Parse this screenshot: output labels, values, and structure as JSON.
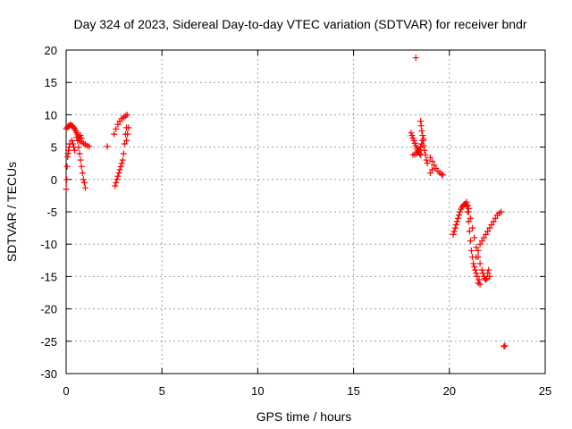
{
  "chart_data": {
    "type": "scatter",
    "title": "Day 324 of 2023, Sidereal Day-to-day VTEC variation (SDTVAR) for receiver bndr",
    "xlabel": "GPS time / hours",
    "ylabel": "SDTVAR / TECUs",
    "xlim": [
      0,
      25
    ],
    "ylim": [
      -30,
      20
    ],
    "x_ticks": [
      0,
      5,
      10,
      15,
      20,
      25
    ],
    "y_ticks": [
      -30,
      -25,
      -20,
      -15,
      -10,
      -5,
      0,
      5,
      10,
      15,
      20
    ],
    "grid": true,
    "legend": "none",
    "marker": "+",
    "color": "#ff0000",
    "series": [
      {
        "points": [
          [
            0.0,
            -1.5
          ],
          [
            0.03,
            0.0
          ],
          [
            0.05,
            2.0
          ],
          [
            0.08,
            3.5
          ],
          [
            0.1,
            4.0
          ],
          [
            0.13,
            4.5
          ],
          [
            0.16,
            5.0
          ],
          [
            0.19,
            5.5
          ],
          [
            0.0,
            7.8
          ],
          [
            0.05,
            8.0
          ],
          [
            0.1,
            8.2
          ],
          [
            0.15,
            8.3
          ],
          [
            0.2,
            8.4
          ],
          [
            0.25,
            8.4
          ],
          [
            0.3,
            8.3
          ],
          [
            0.35,
            8.2
          ],
          [
            0.4,
            8.0
          ],
          [
            0.45,
            7.8
          ],
          [
            0.5,
            7.5
          ],
          [
            0.55,
            7.2
          ],
          [
            0.6,
            6.9
          ],
          [
            0.65,
            6.6
          ],
          [
            0.7,
            6.3
          ],
          [
            0.3,
            6.0
          ],
          [
            0.35,
            5.5
          ],
          [
            0.4,
            5.0
          ],
          [
            0.45,
            4.5
          ],
          [
            0.55,
            6.5
          ],
          [
            0.6,
            6.0
          ],
          [
            0.65,
            5.0
          ],
          [
            0.7,
            4.0
          ],
          [
            0.75,
            3.0
          ],
          [
            0.8,
            2.0
          ],
          [
            0.85,
            1.0
          ],
          [
            0.9,
            0.0
          ],
          [
            0.95,
            -0.5
          ],
          [
            1.0,
            -1.3
          ],
          [
            0.7,
            6.0
          ],
          [
            0.8,
            5.8
          ],
          [
            0.9,
            5.6
          ],
          [
            1.0,
            5.4
          ],
          [
            1.1,
            5.2
          ],
          [
            1.2,
            5.1
          ],
          [
            0.75,
            6.8
          ],
          [
            0.8,
            6.4
          ],
          [
            2.15,
            5.1
          ],
          [
            2.55,
            -1.0
          ],
          [
            2.6,
            -0.5
          ],
          [
            2.65,
            0.0
          ],
          [
            2.7,
            0.5
          ],
          [
            2.75,
            1.0
          ],
          [
            2.8,
            1.5
          ],
          [
            2.85,
            2.0
          ],
          [
            2.9,
            2.5
          ],
          [
            2.95,
            3.0
          ],
          [
            3.0,
            4.0
          ],
          [
            3.05,
            5.5
          ],
          [
            3.1,
            7.0
          ],
          [
            3.15,
            8.0
          ],
          [
            2.5,
            7.0
          ],
          [
            2.6,
            7.8
          ],
          [
            2.7,
            8.5
          ],
          [
            2.8,
            9.0
          ],
          [
            2.9,
            9.4
          ],
          [
            3.0,
            9.6
          ],
          [
            3.1,
            9.8
          ],
          [
            3.18,
            10.0
          ],
          [
            3.15,
            6.0
          ],
          [
            3.2,
            7.0
          ],
          [
            3.25,
            8.0
          ],
          [
            18.0,
            7.2
          ],
          [
            18.05,
            6.8
          ],
          [
            18.1,
            6.4
          ],
          [
            18.15,
            6.0
          ],
          [
            18.2,
            5.6
          ],
          [
            18.25,
            5.2
          ],
          [
            18.3,
            4.8
          ],
          [
            18.35,
            4.5
          ],
          [
            18.4,
            4.2
          ],
          [
            18.45,
            4.0
          ],
          [
            18.5,
            3.8
          ],
          [
            18.1,
            3.8
          ],
          [
            18.2,
            3.9
          ],
          [
            18.3,
            4.0
          ],
          [
            18.4,
            4.3
          ],
          [
            18.45,
            4.6
          ],
          [
            18.5,
            5.0
          ],
          [
            18.55,
            5.5
          ],
          [
            18.6,
            6.0
          ],
          [
            18.65,
            6.3
          ],
          [
            18.5,
            9.0
          ],
          [
            18.53,
            8.3
          ],
          [
            18.56,
            7.5
          ],
          [
            18.6,
            6.8
          ],
          [
            18.63,
            6.0
          ],
          [
            18.66,
            5.2
          ],
          [
            18.7,
            4.5
          ],
          [
            18.75,
            3.8
          ],
          [
            18.8,
            3.0
          ],
          [
            18.85,
            2.5
          ],
          [
            18.25,
            18.8
          ],
          [
            19.0,
            3.4
          ],
          [
            19.1,
            2.8
          ],
          [
            19.2,
            2.2
          ],
          [
            19.3,
            1.7
          ],
          [
            19.4,
            1.3
          ],
          [
            19.5,
            1.0
          ],
          [
            19.6,
            0.8
          ],
          [
            19.65,
            0.7
          ],
          [
            19.0,
            1.0
          ],
          [
            19.1,
            1.5
          ],
          [
            20.2,
            -8.5
          ],
          [
            20.25,
            -8.0
          ],
          [
            20.3,
            -7.5
          ],
          [
            20.35,
            -7.0
          ],
          [
            20.4,
            -6.5
          ],
          [
            20.45,
            -6.0
          ],
          [
            20.5,
            -5.5
          ],
          [
            20.55,
            -5.0
          ],
          [
            20.6,
            -4.6
          ],
          [
            20.65,
            -4.3
          ],
          [
            20.7,
            -4.1
          ],
          [
            20.75,
            -3.9
          ],
          [
            20.8,
            -3.8
          ],
          [
            20.85,
            -3.8
          ],
          [
            20.9,
            -3.9
          ],
          [
            20.95,
            -4.1
          ],
          [
            21.0,
            -4.5
          ],
          [
            20.9,
            -3.5
          ],
          [
            20.95,
            -5.0
          ],
          [
            21.0,
            -6.5
          ],
          [
            21.05,
            -8.0
          ],
          [
            21.1,
            -9.5
          ],
          [
            21.15,
            -11.0
          ],
          [
            21.2,
            -12.0
          ],
          [
            21.25,
            -13.0
          ],
          [
            21.3,
            -13.5
          ],
          [
            21.35,
            -14.0
          ],
          [
            21.4,
            -14.5
          ],
          [
            21.45,
            -15.0
          ],
          [
            21.5,
            -16.0
          ],
          [
            21.0,
            -5.0
          ],
          [
            21.1,
            -6.0
          ],
          [
            21.2,
            -7.5
          ],
          [
            21.3,
            -9.0
          ],
          [
            21.4,
            -10.5
          ],
          [
            21.5,
            -12.0
          ],
          [
            21.6,
            -13.0
          ],
          [
            21.7,
            -14.0
          ],
          [
            21.75,
            -14.5
          ],
          [
            21.8,
            -15.0
          ],
          [
            21.85,
            -15.3
          ],
          [
            21.9,
            -15.5
          ],
          [
            21.95,
            -15.3
          ],
          [
            21.4,
            -12.0
          ],
          [
            21.5,
            -11.0
          ],
          [
            21.6,
            -10.0
          ],
          [
            21.7,
            -9.5
          ],
          [
            21.8,
            -9.0
          ],
          [
            21.9,
            -8.5
          ],
          [
            22.0,
            -8.0
          ],
          [
            22.1,
            -7.5
          ],
          [
            22.2,
            -7.0
          ],
          [
            22.3,
            -6.5
          ],
          [
            22.4,
            -6.0
          ],
          [
            22.5,
            -5.5
          ],
          [
            22.6,
            -5.2
          ],
          [
            22.7,
            -5.0
          ],
          [
            21.6,
            -16.2
          ],
          [
            21.55,
            -15.5
          ],
          [
            22.0,
            -14.5
          ],
          [
            22.05,
            -14.0
          ],
          [
            22.1,
            -15.0
          ],
          [
            22.85,
            -25.8
          ],
          [
            22.9,
            -25.7
          ]
        ]
      }
    ]
  }
}
